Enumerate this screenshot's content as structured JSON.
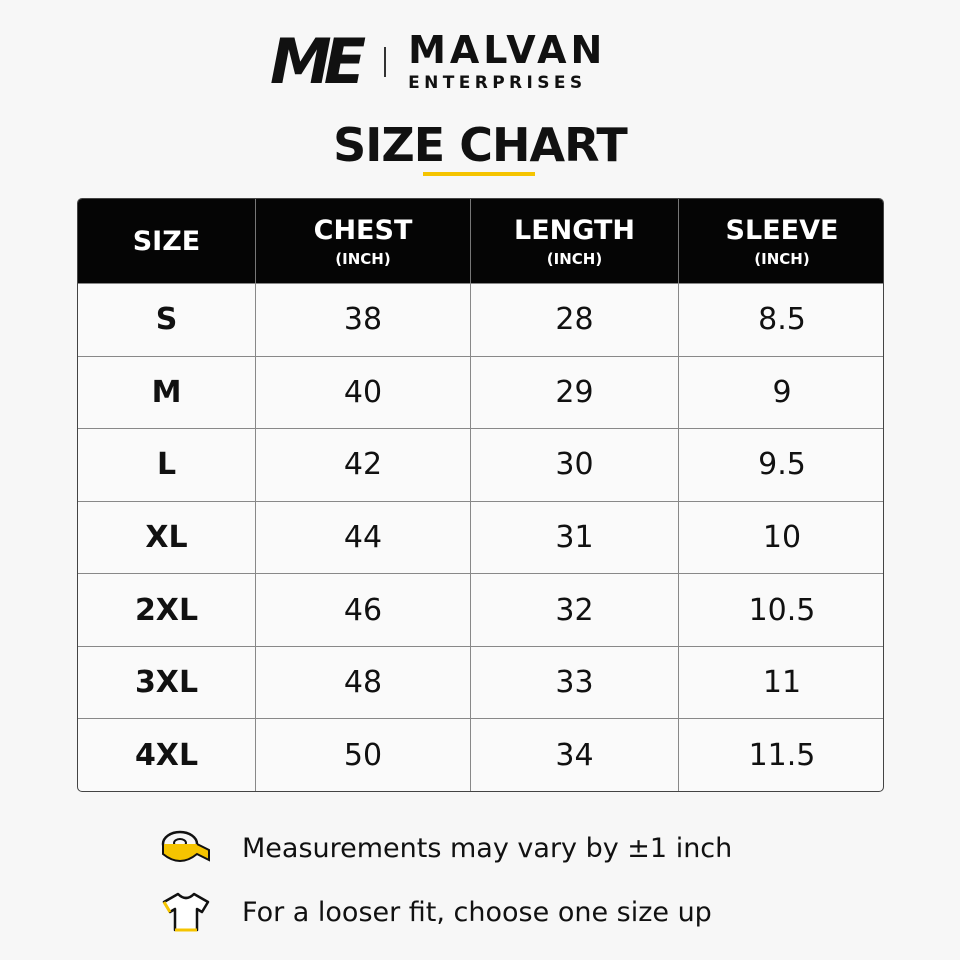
{
  "header": {
    "logo_mark": "ME",
    "brand": "MALVAN",
    "brand_sub": "ENTERPRISES",
    "title": "SIZE CHART"
  },
  "table": {
    "columns": [
      {
        "label": "SIZE"
      },
      {
        "label": "CHEST",
        "unit": "(INCH)"
      },
      {
        "label": "LENGTH",
        "unit": "(INCH)"
      },
      {
        "label": "SLEEVE",
        "unit": "(INCH)"
      }
    ],
    "rows": [
      [
        "S",
        "38",
        "28",
        "8.5"
      ],
      [
        "M",
        "40",
        "29",
        "9"
      ],
      [
        "L",
        "42",
        "30",
        "9.5"
      ],
      [
        "XL",
        "44",
        "31",
        "10"
      ],
      [
        "2XL",
        "46",
        "32",
        "10.5"
      ],
      [
        "3XL",
        "48",
        "33",
        "11"
      ],
      [
        "4XL",
        "50",
        "34",
        "11.5"
      ]
    ]
  },
  "notes": [
    "Measurements may vary by ±1 inch",
    "For a looser fit, choose one size up"
  ]
}
